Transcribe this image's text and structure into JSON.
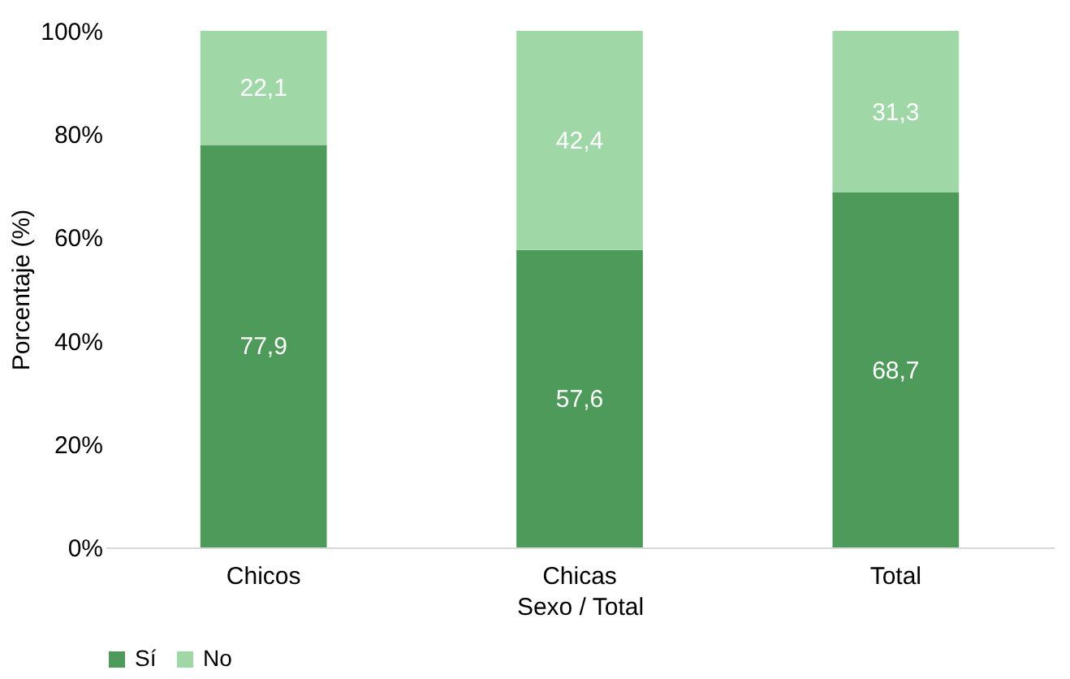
{
  "chart_data": {
    "type": "bar",
    "stacked": true,
    "xlabel": "Sexo / Total",
    "ylabel": "Porcentaje (%)",
    "categories": [
      "Chicos",
      "Chicas",
      "Total"
    ],
    "series": [
      {
        "name": "Sí",
        "color": "#4e9a5a",
        "values": [
          77.9,
          57.6,
          68.7
        ],
        "value_labels": [
          "77,9",
          "57,6",
          "68,7"
        ]
      },
      {
        "name": "No",
        "color": "#9fd8a6",
        "values": [
          22.1,
          42.4,
          31.3
        ],
        "value_labels": [
          "22,1",
          "42,4",
          "31,3"
        ]
      }
    ],
    "ylim": [
      0,
      100
    ],
    "yticks": [
      {
        "value": 0,
        "label": "0%"
      },
      {
        "value": 20,
        "label": "20%"
      },
      {
        "value": 40,
        "label": "40%"
      },
      {
        "value": 60,
        "label": "60%"
      },
      {
        "value": 80,
        "label": "80%"
      },
      {
        "value": 100,
        "label": "100%"
      }
    ],
    "grid": false,
    "legend": "bottom"
  }
}
